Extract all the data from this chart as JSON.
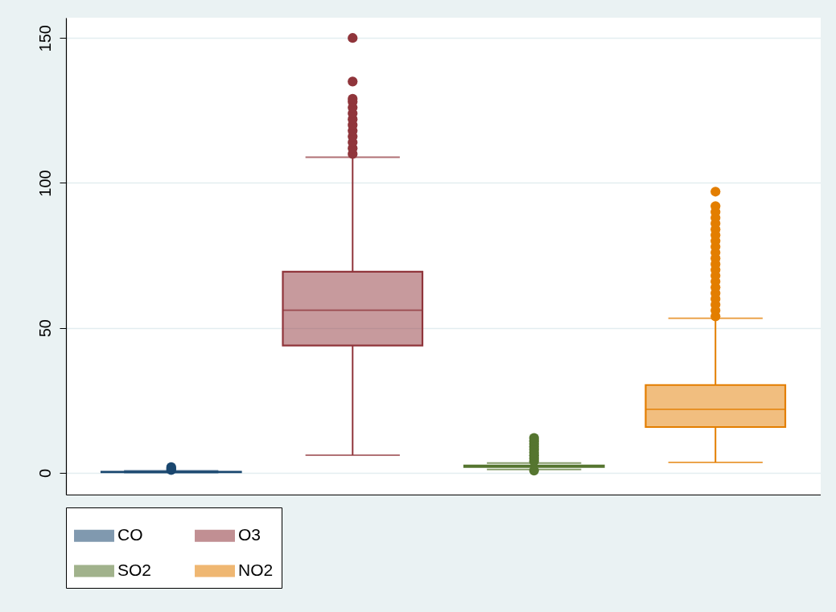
{
  "chart_data": {
    "type": "box",
    "categories": [
      null
    ],
    "ylim": [
      -7.5,
      157
    ],
    "yticks": [
      0,
      50,
      100,
      150
    ],
    "grid": "y",
    "legend": "bottom",
    "series": [
      {
        "name": "CO",
        "color": "#1a476f",
        "boxes": [
          {
            "low": 0.1,
            "q1": 0.2,
            "median": 0.3,
            "q3": 0.4,
            "high": 0.7,
            "outliers": [
              1,
              1.5,
              2
            ]
          }
        ]
      },
      {
        "name": "O3",
        "color": "#90353b",
        "boxes": [
          {
            "low": 6.1,
            "q1": 43.9,
            "median": 56.1,
            "q3": 69.4,
            "high": 108.9,
            "outliers": [
              110,
              112,
              114,
              116,
              118,
              120,
              122,
              124,
              126,
              128,
              129,
              135,
              150
            ]
          }
        ]
      },
      {
        "name": "SO2",
        "color": "#55752f",
        "boxes": [
          {
            "low": 1.2,
            "q1": 2,
            "median": 2.2,
            "q3": 2.5,
            "high": 3.4,
            "outliers": [
              0.8,
              4,
              5,
              6,
              7,
              8,
              9,
              10,
              11,
              12
            ]
          }
        ]
      },
      {
        "name": "NO2",
        "color": "#e37e00",
        "boxes": [
          {
            "low": 3.6,
            "q1": 15.8,
            "median": 21.9,
            "q3": 30.3,
            "high": 53.3,
            "outliers": [
              54,
              56,
              58,
              60,
              62,
              64,
              66,
              68,
              70,
              72,
              74,
              76,
              78,
              80,
              82,
              84,
              86,
              88,
              90,
              92,
              97
            ]
          }
        ]
      }
    ]
  }
}
